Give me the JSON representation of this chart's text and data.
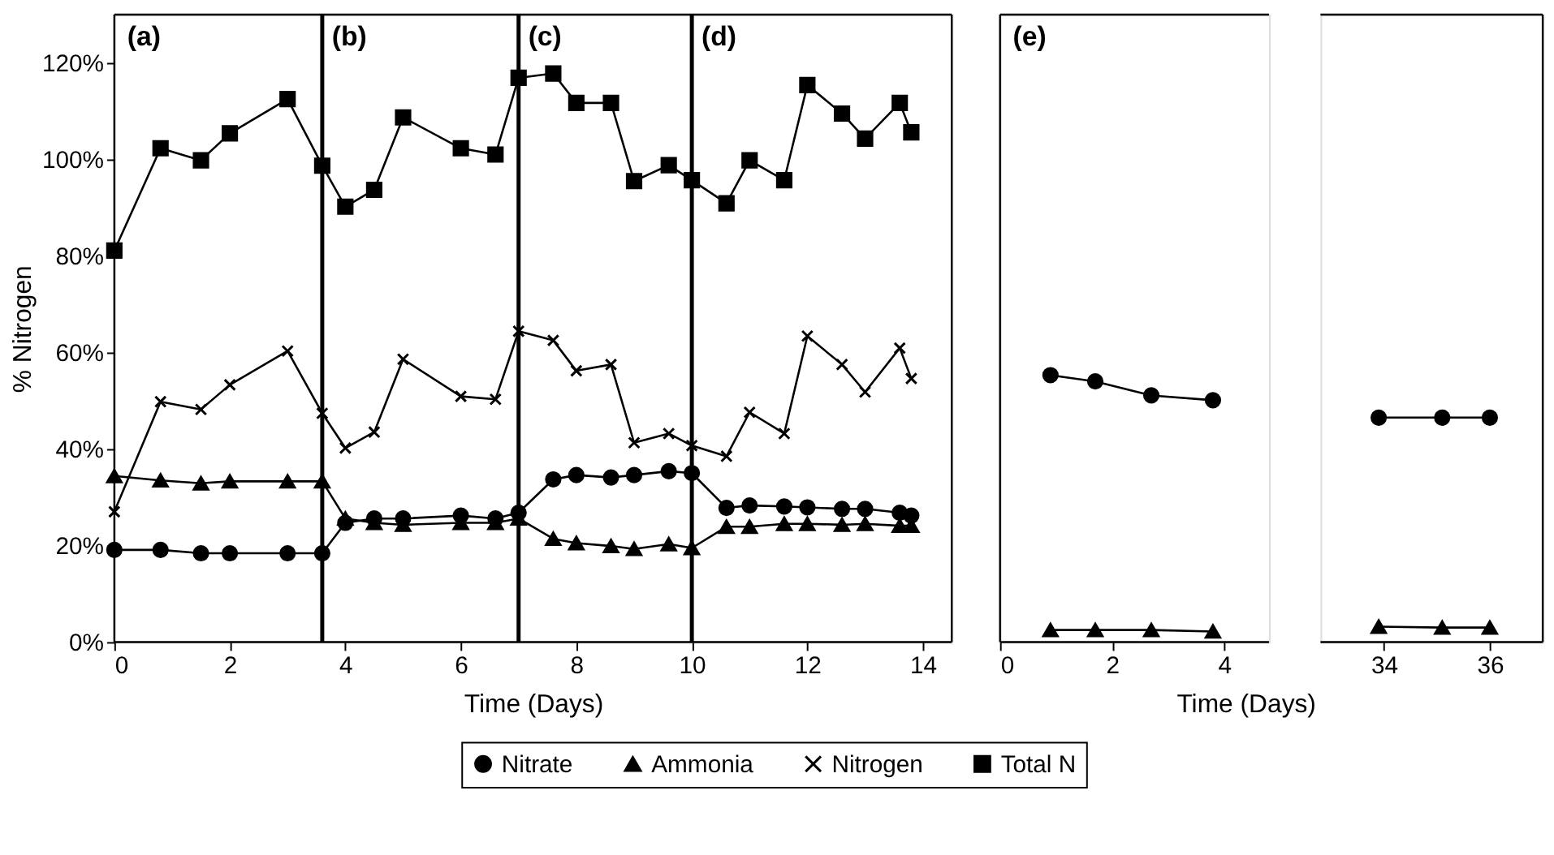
{
  "chart_data": [
    {
      "type": "line",
      "ylabel": "% Nitrogen",
      "xlabel": "Time (Days)",
      "xlim": [
        0,
        14.5
      ],
      "xticks": [
        0,
        2,
        4,
        6,
        8,
        10,
        12,
        14
      ],
      "ylim": [
        0,
        130
      ],
      "yticks": [
        {
          "value": 0,
          "label": "0%"
        },
        {
          "value": 20,
          "label": "20%"
        },
        {
          "value": 40,
          "label": "40%"
        },
        {
          "value": 60,
          "label": "60%"
        },
        {
          "value": 80,
          "label": "80%"
        },
        {
          "value": 100,
          "label": "100%"
        },
        {
          "value": 120,
          "label": "120%"
        }
      ],
      "x": [
        0,
        0.8,
        1.5,
        2,
        3,
        3.6,
        4,
        4.5,
        5,
        6,
        6.6,
        7,
        7.6,
        8,
        8.6,
        9,
        9.6,
        10,
        10.6,
        11,
        11.6,
        12,
        12.6,
        13,
        13.6,
        13.8
      ],
      "series": [
        {
          "name": "Nitrate",
          "color": "#000000",
          "marker": "circle",
          "values": [
            19.1,
            19.1,
            18.4,
            18.4,
            18.4,
            18.4,
            24.7,
            25.6,
            25.6,
            26.2,
            25.6,
            26.8,
            33.7,
            34.6,
            34.1,
            34.6,
            35.4,
            35.0,
            27.8,
            28.3,
            28.1,
            27.9,
            27.6,
            27.6,
            26.8,
            26.2
          ]
        },
        {
          "name": "Ammonia",
          "color": "#000000",
          "marker": "triangle",
          "values": [
            34.4,
            33.5,
            32.9,
            33.3,
            33.3,
            33.3,
            25.6,
            24.7,
            24.3,
            24.7,
            24.7,
            25.6,
            21.4,
            20.5,
            19.9,
            19.3,
            20.3,
            19.5,
            23.9,
            23.9,
            24.5,
            24.5,
            24.3,
            24.5,
            24.1,
            24.1
          ]
        },
        {
          "name": "Nitrogen",
          "color": "#000000",
          "marker": "cross",
          "values": [
            27,
            49.8,
            48.2,
            53.3,
            60.3,
            47.4,
            40.2,
            43.5,
            58.6,
            50.9,
            50.3,
            64.4,
            62.5,
            56.2,
            57.5,
            41.3,
            43.2,
            40.7,
            38.5,
            47.6,
            43.2,
            63.4,
            57.5,
            51.8,
            60.9,
            54.6
          ]
        },
        {
          "name": "Total N",
          "color": "#000000",
          "marker": "square",
          "values": [
            81.1,
            102.3,
            99.8,
            105.4,
            112.5,
            98.7,
            90.2,
            93.7,
            108.7,
            102.3,
            101.0,
            116.9,
            117.8,
            111.7,
            111.7,
            95.5,
            98.8,
            95.7,
            90.9,
            99.8,
            95.7,
            115.4,
            109.5,
            104.3,
            111.7,
            105.6
          ]
        }
      ],
      "ref_lines": [
        {
          "axis": "x",
          "value": 3.6,
          "label": "(b)"
        },
        {
          "axis": "x",
          "value": 7,
          "label": "(c)"
        },
        {
          "axis": "x",
          "value": 10,
          "label": "(d)"
        }
      ],
      "annotations": [
        "(a)"
      ],
      "legend": "bottom",
      "grid": false,
      "line_style": "solid"
    },
    {
      "type": "line",
      "xlabel": "Time (Days)",
      "xlim": [
        0,
        4.8
      ],
      "xticks": [
        0,
        2,
        4
      ],
      "ylim": [
        0,
        130
      ],
      "tick_labels": "x",
      "x": [
        0.9,
        1.7,
        2.7,
        3.8
      ],
      "series": [
        {
          "color": "#000000",
          "marker": "circle",
          "values": [
            55.3,
            54.0,
            51.1,
            50.1
          ]
        },
        {
          "color": "#000000",
          "marker": "triangle",
          "values": [
            2.5,
            2.5,
            2.5,
            2.2
          ]
        }
      ],
      "annotations": [
        "(e)"
      ],
      "grid": false,
      "line_style": "solid"
    },
    {
      "type": "line",
      "xlim": [
        32.8,
        37
      ],
      "xticks": [
        34,
        36
      ],
      "ylim": [
        0,
        130
      ],
      "tick_labels": "x",
      "x": [
        33.9,
        35.1,
        36
      ],
      "series": [
        {
          "color": "#000000",
          "marker": "circle",
          "values": [
            46.5,
            46.5,
            46.5
          ]
        },
        {
          "color": "#000000",
          "marker": "triangle",
          "values": [
            3.2,
            3.0,
            3.0
          ]
        }
      ],
      "grid": false,
      "line_style": "solid"
    }
  ]
}
